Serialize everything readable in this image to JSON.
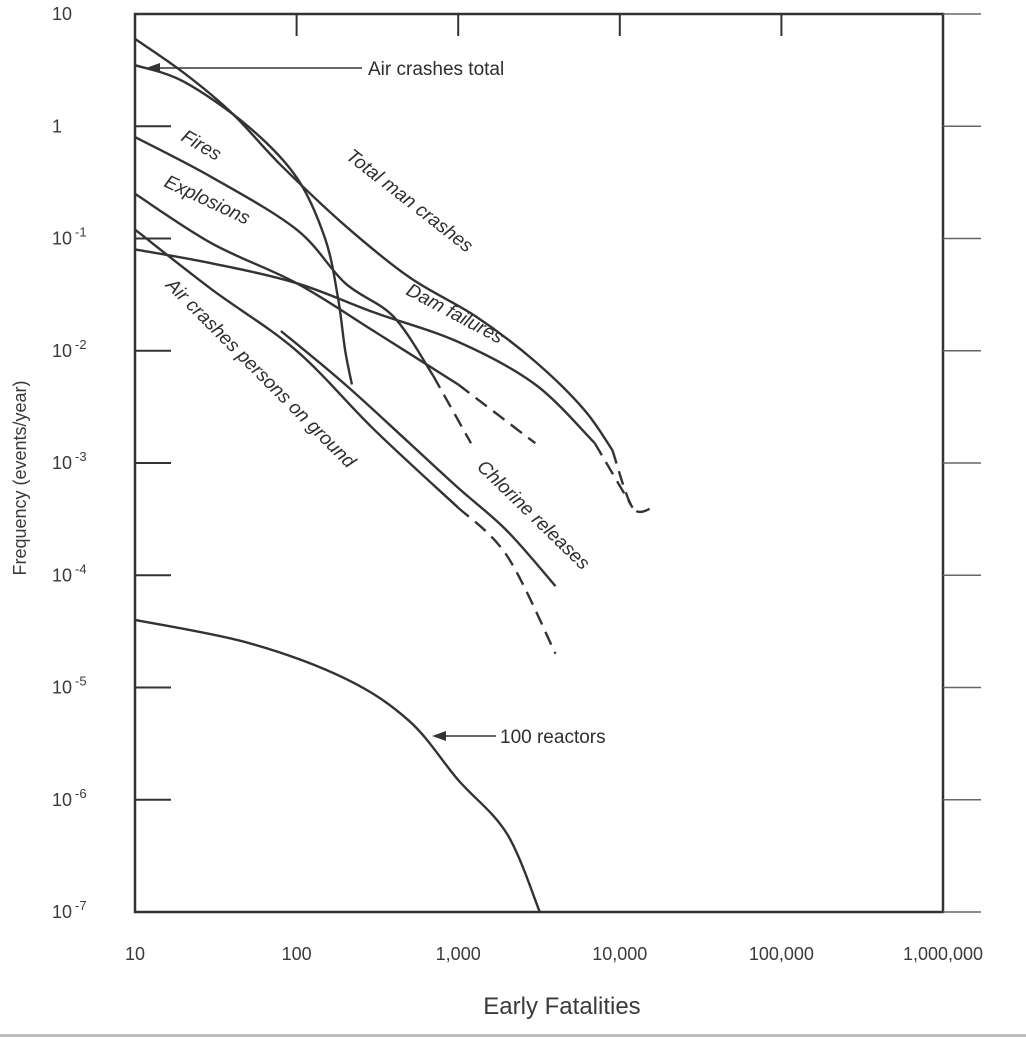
{
  "chart_data": {
    "type": "line",
    "title": "",
    "xlabel": "Early Fatalities",
    "ylabel": "Frequency (events/year)",
    "x_scale": "log",
    "y_scale": "log",
    "xlim": [
      10,
      1000000
    ],
    "ylim": [
      1e-07,
      10
    ],
    "x_ticks": [
      10,
      100,
      1000,
      10000,
      100000,
      1000000
    ],
    "x_tick_labels": [
      "10",
      "100",
      "1,000",
      "10,000",
      "100,000",
      "1,000,000"
    ],
    "y_ticks": [
      10,
      1,
      0.1,
      0.01,
      0.001,
      0.0001,
      1e-05,
      1e-06,
      1e-07
    ],
    "y_tick_labels": [
      {
        "base": "10",
        "exp": ""
      },
      {
        "base": "1",
        "exp": ""
      },
      {
        "base": "10",
        "exp": "-1"
      },
      {
        "base": "10",
        "exp": "-2"
      },
      {
        "base": "10",
        "exp": "-3"
      },
      {
        "base": "10",
        "exp": "-4"
      },
      {
        "base": "10",
        "exp": "-5"
      },
      {
        "base": "10",
        "exp": "-6"
      },
      {
        "base": "10",
        "exp": "-7"
      }
    ],
    "grid": false,
    "colors": {
      "line": "#333333",
      "frame": "#333333",
      "text": "#3a3a3a"
    },
    "series": [
      {
        "name": "Total man crashes",
        "points": [
          [
            10,
            6
          ],
          [
            20,
            3
          ],
          [
            40,
            1.3
          ],
          [
            80,
            0.45
          ],
          [
            200,
            0.13
          ],
          [
            500,
            0.045
          ],
          [
            1300,
            0.02
          ],
          [
            3000,
            0.008
          ],
          [
            6000,
            0.003
          ],
          [
            9000,
            0.0013
          ],
          [
            12000,
            0.0004
          ],
          [
            16000,
            0.0004
          ]
        ],
        "dashed_from_x": 11000
      },
      {
        "name": "Air crashes total",
        "points": [
          [
            10,
            3.5
          ],
          [
            20,
            2.5
          ],
          [
            50,
            1.0
          ],
          [
            100,
            0.35
          ],
          [
            150,
            0.1
          ],
          [
            180,
            0.03
          ],
          [
            200,
            0.01
          ],
          [
            220,
            0.005
          ]
        ],
        "dashed_from_x": null
      },
      {
        "name": "Fires",
        "points": [
          [
            10,
            0.8
          ],
          [
            30,
            0.35
          ],
          [
            100,
            0.12
          ],
          [
            200,
            0.04
          ],
          [
            400,
            0.02
          ],
          [
            700,
            0.006
          ],
          [
            1200,
            0.0015
          ]
        ],
        "dashed_from_x": 800
      },
      {
        "name": "Explosions",
        "points": [
          [
            10,
            0.25
          ],
          [
            30,
            0.09
          ],
          [
            100,
            0.04
          ],
          [
            300,
            0.015
          ],
          [
            1000,
            0.005
          ],
          [
            3000,
            0.0015
          ]
        ],
        "dashed_from_x": 1500
      },
      {
        "name": "Dam failures",
        "points": [
          [
            10,
            0.08
          ],
          [
            30,
            0.06
          ],
          [
            100,
            0.04
          ],
          [
            300,
            0.022
          ],
          [
            1000,
            0.012
          ],
          [
            3000,
            0.005
          ],
          [
            7000,
            0.0015
          ],
          [
            12000,
            0.0004
          ]
        ],
        "dashed_from_x": 11000
      },
      {
        "name": "Air crashes persons on ground",
        "points": [
          [
            10,
            0.12
          ],
          [
            30,
            0.035
          ],
          [
            100,
            0.01
          ],
          [
            300,
            0.002
          ],
          [
            1000,
            0.0004
          ],
          [
            2000,
            0.00015
          ],
          [
            4000,
            2e-05
          ]
        ],
        "dashed_from_x": 1200
      },
      {
        "name": "Chlorine releases",
        "points": [
          [
            80,
            0.015
          ],
          [
            200,
            0.005
          ],
          [
            500,
            0.0015
          ],
          [
            1000,
            0.0006
          ],
          [
            2000,
            0.00025
          ],
          [
            4000,
            8e-05
          ]
        ],
        "dashed_from_x": null
      },
      {
        "name": "100 reactors",
        "points": [
          [
            10,
            4e-05
          ],
          [
            50,
            2.5e-05
          ],
          [
            200,
            1.2e-05
          ],
          [
            500,
            5e-06
          ],
          [
            1000,
            1.5e-06
          ],
          [
            2000,
            5e-07
          ],
          [
            3200,
            1e-07
          ]
        ],
        "dashed_from_x": null
      }
    ],
    "annotations": [
      "Air crashes total",
      "Fires",
      "Explosions",
      "Total man crashes",
      "Dam failures",
      "Air crashes persons on ground",
      "Chlorine releases",
      "100 reactors"
    ]
  }
}
